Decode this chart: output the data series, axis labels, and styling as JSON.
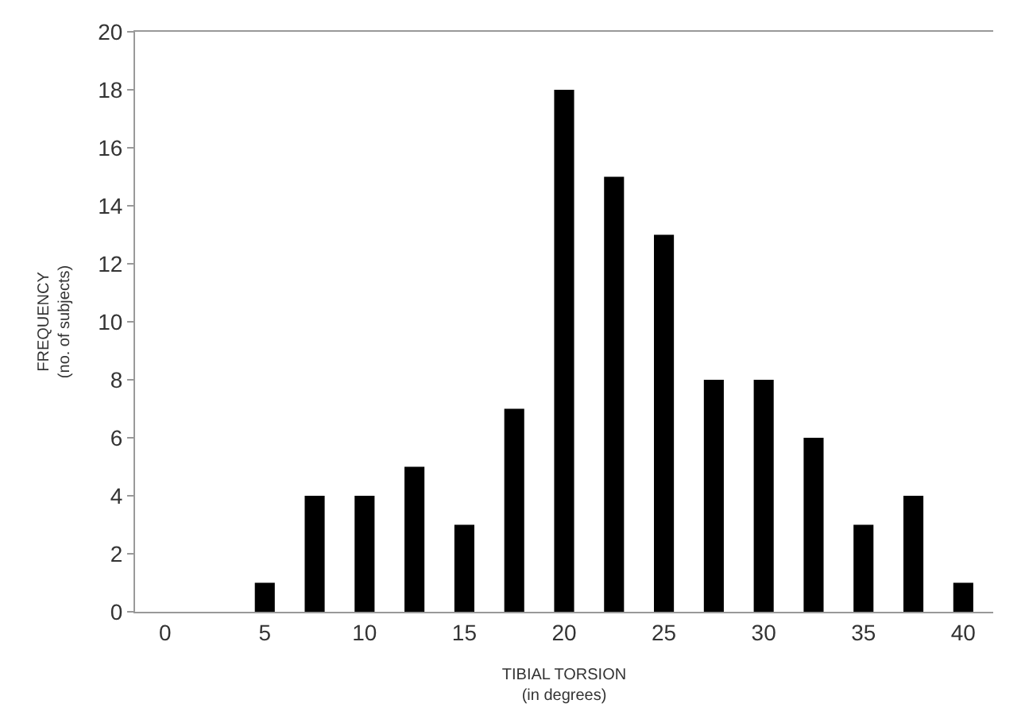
{
  "chart_data": {
    "type": "bar",
    "xlabel": "TIBIAL TORSION\n(in degrees)",
    "ylabel": "FREQUENCY\n(no. of subjects)",
    "categories": [
      "0",
      null,
      "5",
      null,
      "10",
      null,
      "15",
      null,
      "20",
      null,
      "25",
      null,
      "30",
      null,
      "35",
      null,
      "40"
    ],
    "values": [
      null,
      null,
      1,
      4,
      4,
      5,
      3,
      7,
      18,
      15,
      13,
      8,
      8,
      6,
      3,
      4,
      1
    ],
    "color": "#000000",
    "ylim": [
      0,
      20
    ],
    "yticks": [
      0,
      2,
      4,
      6,
      8,
      10,
      12,
      14,
      16,
      18,
      20
    ]
  }
}
